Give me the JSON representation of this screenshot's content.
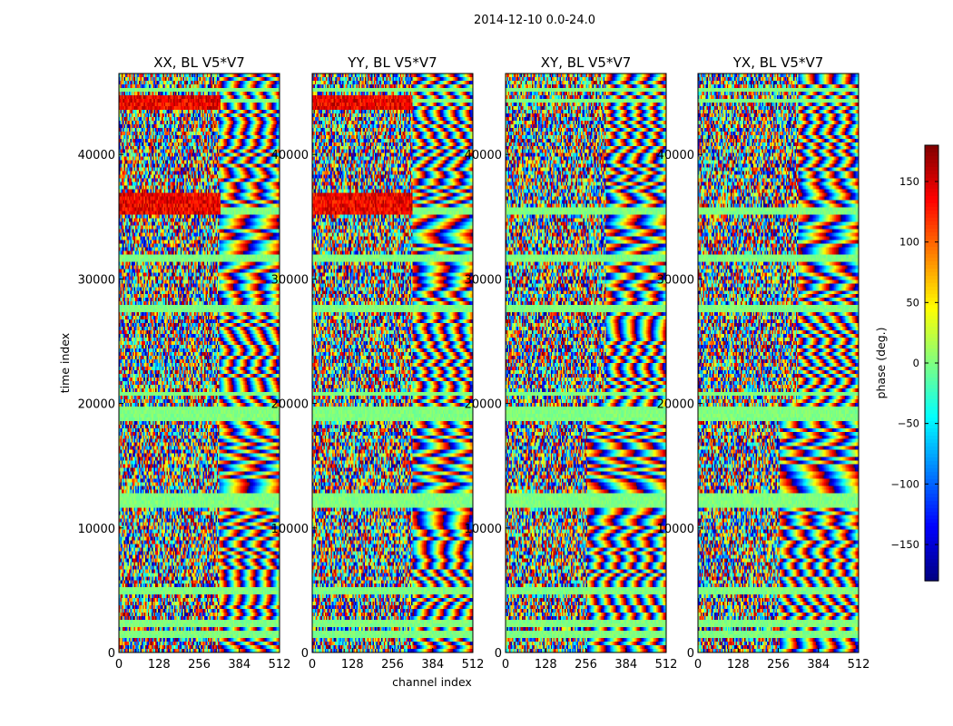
{
  "chart_data": {
    "type": "heatmap",
    "title": "2014-12-10 0.0-24.0",
    "xlabel": "channel index",
    "ylabel": "time index",
    "xlim": [
      0,
      512
    ],
    "ylim": [
      0,
      46500
    ],
    "x_ticks": [
      "0",
      "128",
      "256",
      "384",
      "512"
    ],
    "x_tick_values": [
      0,
      128,
      256,
      384,
      512
    ],
    "y_ticks": [
      "0",
      "10000",
      "20000",
      "30000",
      "40000"
    ],
    "y_tick_values": [
      0,
      10000,
      20000,
      30000,
      40000
    ],
    "colormap": "jet",
    "colorbar": {
      "label": "phase (deg.)",
      "range": [
        -180,
        180
      ],
      "ticks": [
        "−150",
        "−100",
        "−50",
        "0",
        "50",
        "100",
        "150"
      ],
      "tick_values": [
        -150,
        -100,
        -50,
        0,
        50,
        100,
        150
      ]
    },
    "panels": [
      {
        "name": "XX, BL V5*V7",
        "description": "phase vs channel and time; noisy left half, fringes right of ~320"
      },
      {
        "name": "YY, BL V5*V7",
        "description": "phase vs channel and time; noisy left half, fringes right of ~320"
      },
      {
        "name": "XY, BL V5*V7",
        "description": "phase vs channel and time; mostly noisy with fringes"
      },
      {
        "name": "YX, BL V5*V7",
        "description": "phase vs channel and time; mostly noisy with fringes"
      }
    ],
    "flagged_rows_approx": [
      1500,
      2300,
      5000,
      11900,
      12400,
      18800,
      19400,
      20800,
      27600,
      31600,
      35400,
      44300,
      45200
    ],
    "strong_phase_bands_approx": [
      {
        "panel": "XX, BL V5*V7",
        "time_range": [
          35200,
          36900
        ],
        "channel_range": [
          0,
          325
        ],
        "phase_deg": 140
      },
      {
        "panel": "XX, BL V5*V7",
        "time_range": [
          43600,
          44800
        ],
        "channel_range": [
          0,
          325
        ],
        "phase_deg": 140
      },
      {
        "panel": "YY, BL V5*V7",
        "time_range": [
          35200,
          36900
        ],
        "channel_range": [
          0,
          320
        ],
        "phase_deg": 140
      },
      {
        "panel": "YY, BL V5*V7",
        "time_range": [
          43600,
          44800
        ],
        "channel_range": [
          0,
          320
        ],
        "phase_deg": 140
      }
    ]
  }
}
